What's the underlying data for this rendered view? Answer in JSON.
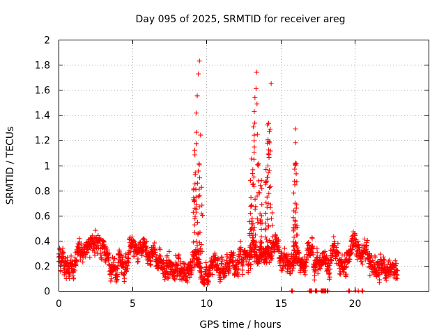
{
  "chart_data": {
    "type": "scatter",
    "title": "Day 095 of 2025, SRMTID for receiver areg",
    "xlabel": "GPS time / hours",
    "ylabel": "SRMTID / TECUs",
    "xlim": [
      0,
      25
    ],
    "ylim": [
      0,
      2
    ],
    "xticks": [
      0,
      5,
      10,
      15,
      20
    ],
    "xtick_labels": [
      "0",
      "5",
      "10",
      "15",
      "20"
    ],
    "yticks": [
      0,
      0.2,
      0.4,
      0.6,
      0.8,
      1,
      1.2,
      1.4,
      1.6,
      1.8,
      2
    ],
    "ytick_labels": [
      "0",
      "0.2",
      "0.4",
      "0.6",
      "0.8",
      "1",
      "1.2",
      "1.4",
      "1.6",
      "1.8",
      "2"
    ],
    "grid": true,
    "marker": "plus",
    "color": "#ff0000",
    "generation": {
      "x_range": [
        0.0,
        22.9
      ],
      "step_hours": 0.0125,
      "baseline_knots": [
        [
          0.0,
          0.25
        ],
        [
          0.5,
          0.2
        ],
        [
          1.0,
          0.22
        ],
        [
          1.5,
          0.28
        ],
        [
          2.0,
          0.34
        ],
        [
          2.7,
          0.38
        ],
        [
          3.2,
          0.28
        ],
        [
          3.8,
          0.2
        ],
        [
          4.4,
          0.24
        ],
        [
          4.9,
          0.36
        ],
        [
          5.3,
          0.3
        ],
        [
          5.7,
          0.38
        ],
        [
          6.2,
          0.32
        ],
        [
          6.8,
          0.26
        ],
        [
          7.3,
          0.22
        ],
        [
          7.9,
          0.16
        ],
        [
          8.4,
          0.14
        ],
        [
          8.9,
          0.18
        ],
        [
          9.3,
          0.22
        ],
        [
          9.9,
          0.14
        ],
        [
          10.5,
          0.16
        ],
        [
          11.0,
          0.2
        ],
        [
          11.5,
          0.18
        ],
        [
          12.0,
          0.24
        ],
        [
          12.6,
          0.26
        ],
        [
          13.0,
          0.3
        ],
        [
          13.5,
          0.28
        ],
        [
          14.0,
          0.3
        ],
        [
          14.5,
          0.35
        ],
        [
          15.0,
          0.3
        ],
        [
          15.5,
          0.26
        ],
        [
          16.0,
          0.28
        ],
        [
          16.5,
          0.26
        ],
        [
          17.0,
          0.24
        ],
        [
          17.5,
          0.2
        ],
        [
          18.0,
          0.26
        ],
        [
          18.5,
          0.3
        ],
        [
          19.0,
          0.24
        ],
        [
          19.5,
          0.28
        ],
        [
          20.0,
          0.38
        ],
        [
          20.4,
          0.3
        ],
        [
          20.8,
          0.26
        ],
        [
          21.3,
          0.2
        ],
        [
          21.8,
          0.18
        ],
        [
          22.3,
          0.15
        ],
        [
          22.9,
          0.14
        ]
      ],
      "noise_amplitude": 0.1,
      "spikes": [
        {
          "x_range": [
            9.1,
            9.75
          ],
          "peak": 1.83,
          "count": 60
        },
        {
          "x_range": [
            12.9,
            13.75
          ],
          "peak": 1.74,
          "count": 80
        },
        {
          "x_range": [
            13.95,
            14.45
          ],
          "peak": 1.65,
          "count": 55
        },
        {
          "x_range": [
            15.85,
            16.15
          ],
          "peak": 1.29,
          "count": 40
        }
      ],
      "seed": 95
    },
    "zero_value_hours": [
      15.75,
      15.8,
      16.95,
      17.0,
      17.05,
      17.1,
      17.35,
      17.4,
      17.45,
      17.75,
      17.8,
      17.85,
      17.9,
      17.95,
      18.0,
      18.05,
      18.15,
      18.2,
      19.6,
      19.65,
      20.05,
      20.25,
      20.5,
      20.55
    ]
  }
}
